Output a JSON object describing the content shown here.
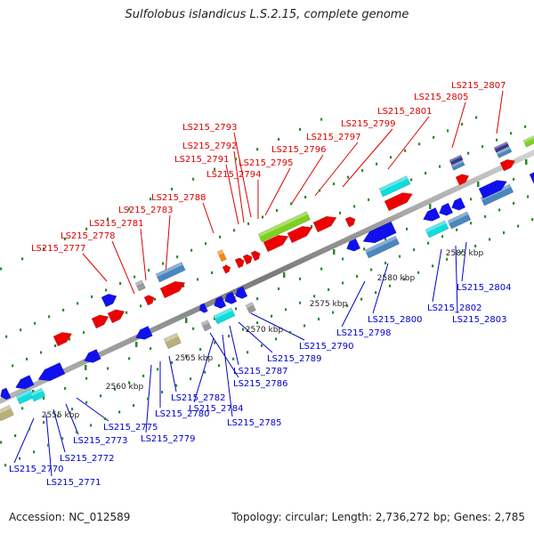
{
  "title": "Sulfolobus islandicus L.S.2.15, complete genome",
  "footer": {
    "accession": "Accession: NC_012589",
    "summary": "Topology: circular; Length: 2,736,272 bp; Genes: 2,785"
  },
  "colors": {
    "forward_label": "#dd0000",
    "reverse_label": "#0000cc",
    "backbone": "#8a8a8a",
    "tick": "#2a8a2a",
    "red_gene": "#ee0000",
    "blue_gene": "#1010ee",
    "cyan_gene": "#10dcdc",
    "steel_gene": "#4a86c0",
    "olive_gene": "#b8b07a",
    "green_gene": "#7ed020",
    "orange_gene": "#f08c10",
    "navy_gene": "#3a3a90",
    "gray_gene": "#9a9a9a"
  },
  "scale_labels": [
    "2555 kbp",
    "2560 kbp",
    "2565 kbp",
    "2570 kbp",
    "2575 kbp",
    "2580 kbp",
    "2585 kbp"
  ],
  "forward_genes": [
    "LS215_2777",
    "LS215_2778",
    "LS215_2781",
    "LS215_2783",
    "LS215_2788",
    "LS215_2791",
    "LS215_2792",
    "LS215_2793",
    "LS215_2794",
    "LS215_2795",
    "LS215_2796",
    "LS215_2797",
    "LS215_2799",
    "LS215_2801",
    "LS215_2805",
    "LS215_2807"
  ],
  "reverse_genes": [
    "LS215_2770",
    "LS215_2771",
    "LS215_2772",
    "LS215_2773",
    "LS215_2775",
    "LS215_2779",
    "LS215_2780",
    "LS215_2782",
    "LS215_2784",
    "LS215_2785",
    "LS215_2786",
    "LS215_2787",
    "LS215_2789",
    "LS215_2790",
    "LS215_2798",
    "LS215_2800",
    "LS215_2802",
    "LS215_2803",
    "LS215_2804"
  ]
}
